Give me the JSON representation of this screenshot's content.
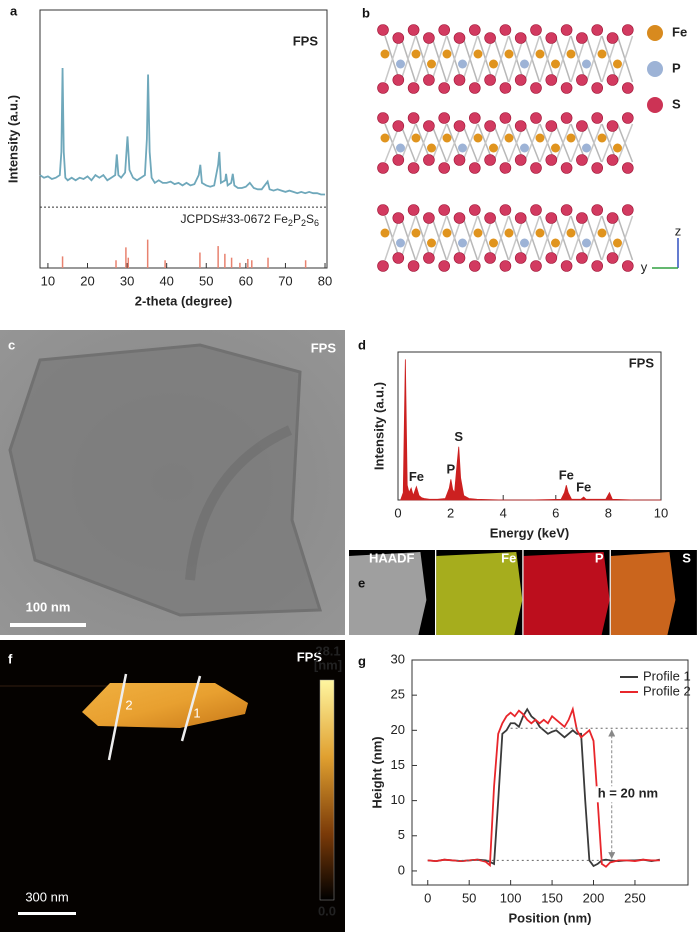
{
  "panel_labels": [
    "a",
    "b",
    "c",
    "d",
    "e",
    "f",
    "g"
  ],
  "structure_b": {
    "legend": [
      "Fe",
      "P",
      "S"
    ],
    "axes": [
      "z",
      "y"
    ]
  },
  "image_c": {
    "tag": "FPS",
    "scale_bar": "100 nm"
  },
  "mapping_e": {
    "tiles": [
      "HAADF",
      "Fe",
      "P",
      "S"
    ]
  },
  "afm_f": {
    "tag": "FPS",
    "scale_bar": "300 nm",
    "colorbar_max": "28.1",
    "colorbar_unit": "[nm]",
    "colorbar_min": "0.0",
    "profile_marks": [
      "2",
      "1"
    ]
  },
  "chart_data": [
    {
      "type": "line",
      "tag": "FPS",
      "xlabel": "2-theta (degree)",
      "ylabel": "Intensity (a.u.)",
      "xlim": [
        8,
        80.5
      ],
      "xticks": [
        10,
        20,
        30,
        40,
        50,
        60,
        70,
        80
      ],
      "ylim": [
        0,
        100
      ],
      "x": [
        8,
        9,
        10,
        11,
        12,
        13,
        13.4,
        13.7,
        14.0,
        14.4,
        15,
        16,
        17,
        18,
        19,
        20,
        21,
        22,
        23,
        24,
        25,
        26,
        27,
        27.4,
        27.8,
        28.5,
        29.5,
        30.1,
        30.6,
        31.5,
        32.5,
        33.5,
        34.5,
        35.0,
        35.3,
        35.7,
        36.2,
        37,
        38,
        39,
        40,
        41,
        42,
        43,
        44,
        45,
        46,
        47,
        48.1,
        48.5,
        48.9,
        50,
        51,
        52,
        53.0,
        53.3,
        53.7,
        54.8,
        55.0,
        55.4,
        56.3,
        56.7,
        57.1,
        58,
        59,
        60,
        61,
        62,
        63,
        64,
        65.5,
        66,
        67,
        68,
        69,
        70,
        71,
        72,
        73,
        74,
        75,
        76,
        77,
        78,
        79,
        80
      ],
      "series": [
        {
          "color": "#6fa8bb",
          "values": [
            36,
            35,
            35.5,
            34.5,
            35,
            36,
            45,
            77.5,
            45,
            35,
            34,
            35,
            34,
            35,
            34.5,
            35.5,
            34,
            36,
            35,
            36,
            34,
            35,
            36,
            44,
            36,
            35,
            37,
            51,
            38,
            35,
            34,
            35,
            36,
            50,
            75,
            45,
            35,
            33,
            34,
            33,
            33,
            33.5,
            32.5,
            33,
            32,
            33,
            32,
            32.5,
            36,
            40,
            33,
            32,
            31.5,
            32,
            40,
            45,
            33,
            34,
            36.5,
            32,
            33,
            36.5,
            32,
            31,
            31,
            31.5,
            33,
            31,
            30.5,
            30.5,
            33.5,
            30.5,
            30,
            30.5,
            30,
            29.5,
            30,
            29.5,
            29,
            29.5,
            29,
            29.5,
            29,
            29,
            28.5,
            28.5
          ]
        }
      ],
      "ref_divider": 23.6,
      "reference": {
        "label_parts": [
          "JCPDS#33-0672 Fe",
          "2",
          "P",
          "2",
          "S",
          "6"
        ],
        "color": "#e8826f",
        "x": [
          13.7,
          27.2,
          29.7,
          30.3,
          35.2,
          39.6,
          48.4,
          53.0,
          54.7,
          56.4,
          58.5,
          60.5,
          61.5,
          65.6,
          75.1
        ],
        "values": [
          4.5,
          3,
          8,
          4,
          11,
          3,
          6,
          8.5,
          5.5,
          4,
          2,
          3.5,
          3,
          4,
          3
        ]
      }
    },
    {
      "type": "area",
      "tag": "FPS",
      "xlabel": "Energy (keV)",
      "ylabel": "Intensity (a.u.)",
      "xlim": [
        0,
        10
      ],
      "xticks": [
        0,
        2,
        4,
        6,
        8,
        10
      ],
      "ylim": [
        0,
        100
      ],
      "x": [
        0.1,
        0.2,
        0.28,
        0.35,
        0.42,
        0.5,
        0.58,
        0.7,
        0.8,
        0.9,
        1.0,
        1.2,
        1.5,
        1.8,
        1.95,
        2.01,
        2.08,
        2.15,
        2.25,
        2.31,
        2.38,
        2.5,
        2.7,
        3.0,
        4,
        5,
        6.2,
        6.33,
        6.4,
        6.47,
        6.6,
        6.95,
        7.06,
        7.15,
        7.9,
        8.04,
        8.15,
        9,
        10
      ],
      "series": [
        {
          "color": "#cc2020",
          "values": [
            0,
            5,
            95,
            10,
            5,
            8,
            3,
            9,
            3,
            1.5,
            1,
            0.5,
            0.5,
            1,
            8,
            14,
            7,
            5,
            25,
            36,
            15,
            3,
            1,
            0.5,
            0,
            0,
            0.5,
            5,
            10,
            5,
            0.5,
            0.5,
            2,
            0.5,
            0.5,
            5,
            0.5,
            0,
            0
          ]
        }
      ],
      "annotations": [
        {
          "text": "Fe",
          "x": 0.7
        },
        {
          "text": "P",
          "x": 2.01
        },
        {
          "text": "S",
          "x": 2.31
        },
        {
          "text": "Fe",
          "x": 6.4
        },
        {
          "text": "Fe",
          "x": 7.06
        }
      ]
    },
    {
      "type": "line",
      "xlabel": "Position (nm)",
      "ylabel": "Height (nm)",
      "xlim": [
        -19,
        314
      ],
      "xticks": [
        0,
        50,
        100,
        150,
        200,
        250
      ],
      "ylim": [
        -2,
        30
      ],
      "yticks": [
        0,
        5,
        10,
        15,
        20,
        25,
        30
      ],
      "x": [
        0,
        10,
        20,
        30,
        40,
        50,
        60,
        70,
        75,
        80,
        85,
        90,
        95,
        100,
        105,
        110,
        115,
        120,
        125,
        130,
        135,
        140,
        145,
        150,
        155,
        160,
        165,
        170,
        175,
        180,
        185,
        190,
        195,
        200,
        205,
        210,
        215,
        220,
        230,
        240,
        250,
        260,
        270,
        280
      ],
      "series": [
        {
          "name": "Profile 1",
          "color": "#3a3a3a",
          "values": [
            1.5,
            1.4,
            1.6,
            1.5,
            1.4,
            1.5,
            1.6,
            1.5,
            1.3,
            1.0,
            10,
            19.5,
            20,
            21,
            21,
            20.5,
            22,
            23,
            22,
            21.5,
            20.5,
            20,
            19.5,
            19.8,
            20,
            19.5,
            19,
            19.5,
            20,
            19.5,
            19.5,
            10,
            1.5,
            0.7,
            1,
            1.5,
            1.6,
            1.5,
            1.4,
            1.5,
            1.5,
            1.6,
            1.4,
            1.6
          ]
        },
        {
          "name": "Profile 2",
          "color": "#e8262b",
          "values": [
            1.5,
            1.4,
            1.6,
            1.5,
            1.4,
            1.5,
            1.6,
            1.3,
            0.8,
            12,
            19.5,
            21,
            22,
            22.5,
            22,
            22.8,
            22.3,
            21.5,
            21,
            21.5,
            21,
            21.5,
            21,
            22,
            21.5,
            21,
            20.5,
            21.5,
            23,
            20,
            19,
            19.5,
            20,
            18.5,
            10,
            1.0,
            0.6,
            1.2,
            1.5,
            1.5,
            1.4,
            1.6,
            1.5,
            1.5
          ]
        }
      ],
      "levels": [
        {
          "value": 20.3,
          "from": 100,
          "to": 314
        },
        {
          "value": 1.5,
          "from": 35,
          "to": 222
        }
      ],
      "arrow_x": 222,
      "annotation": "h = 20 nm"
    }
  ]
}
